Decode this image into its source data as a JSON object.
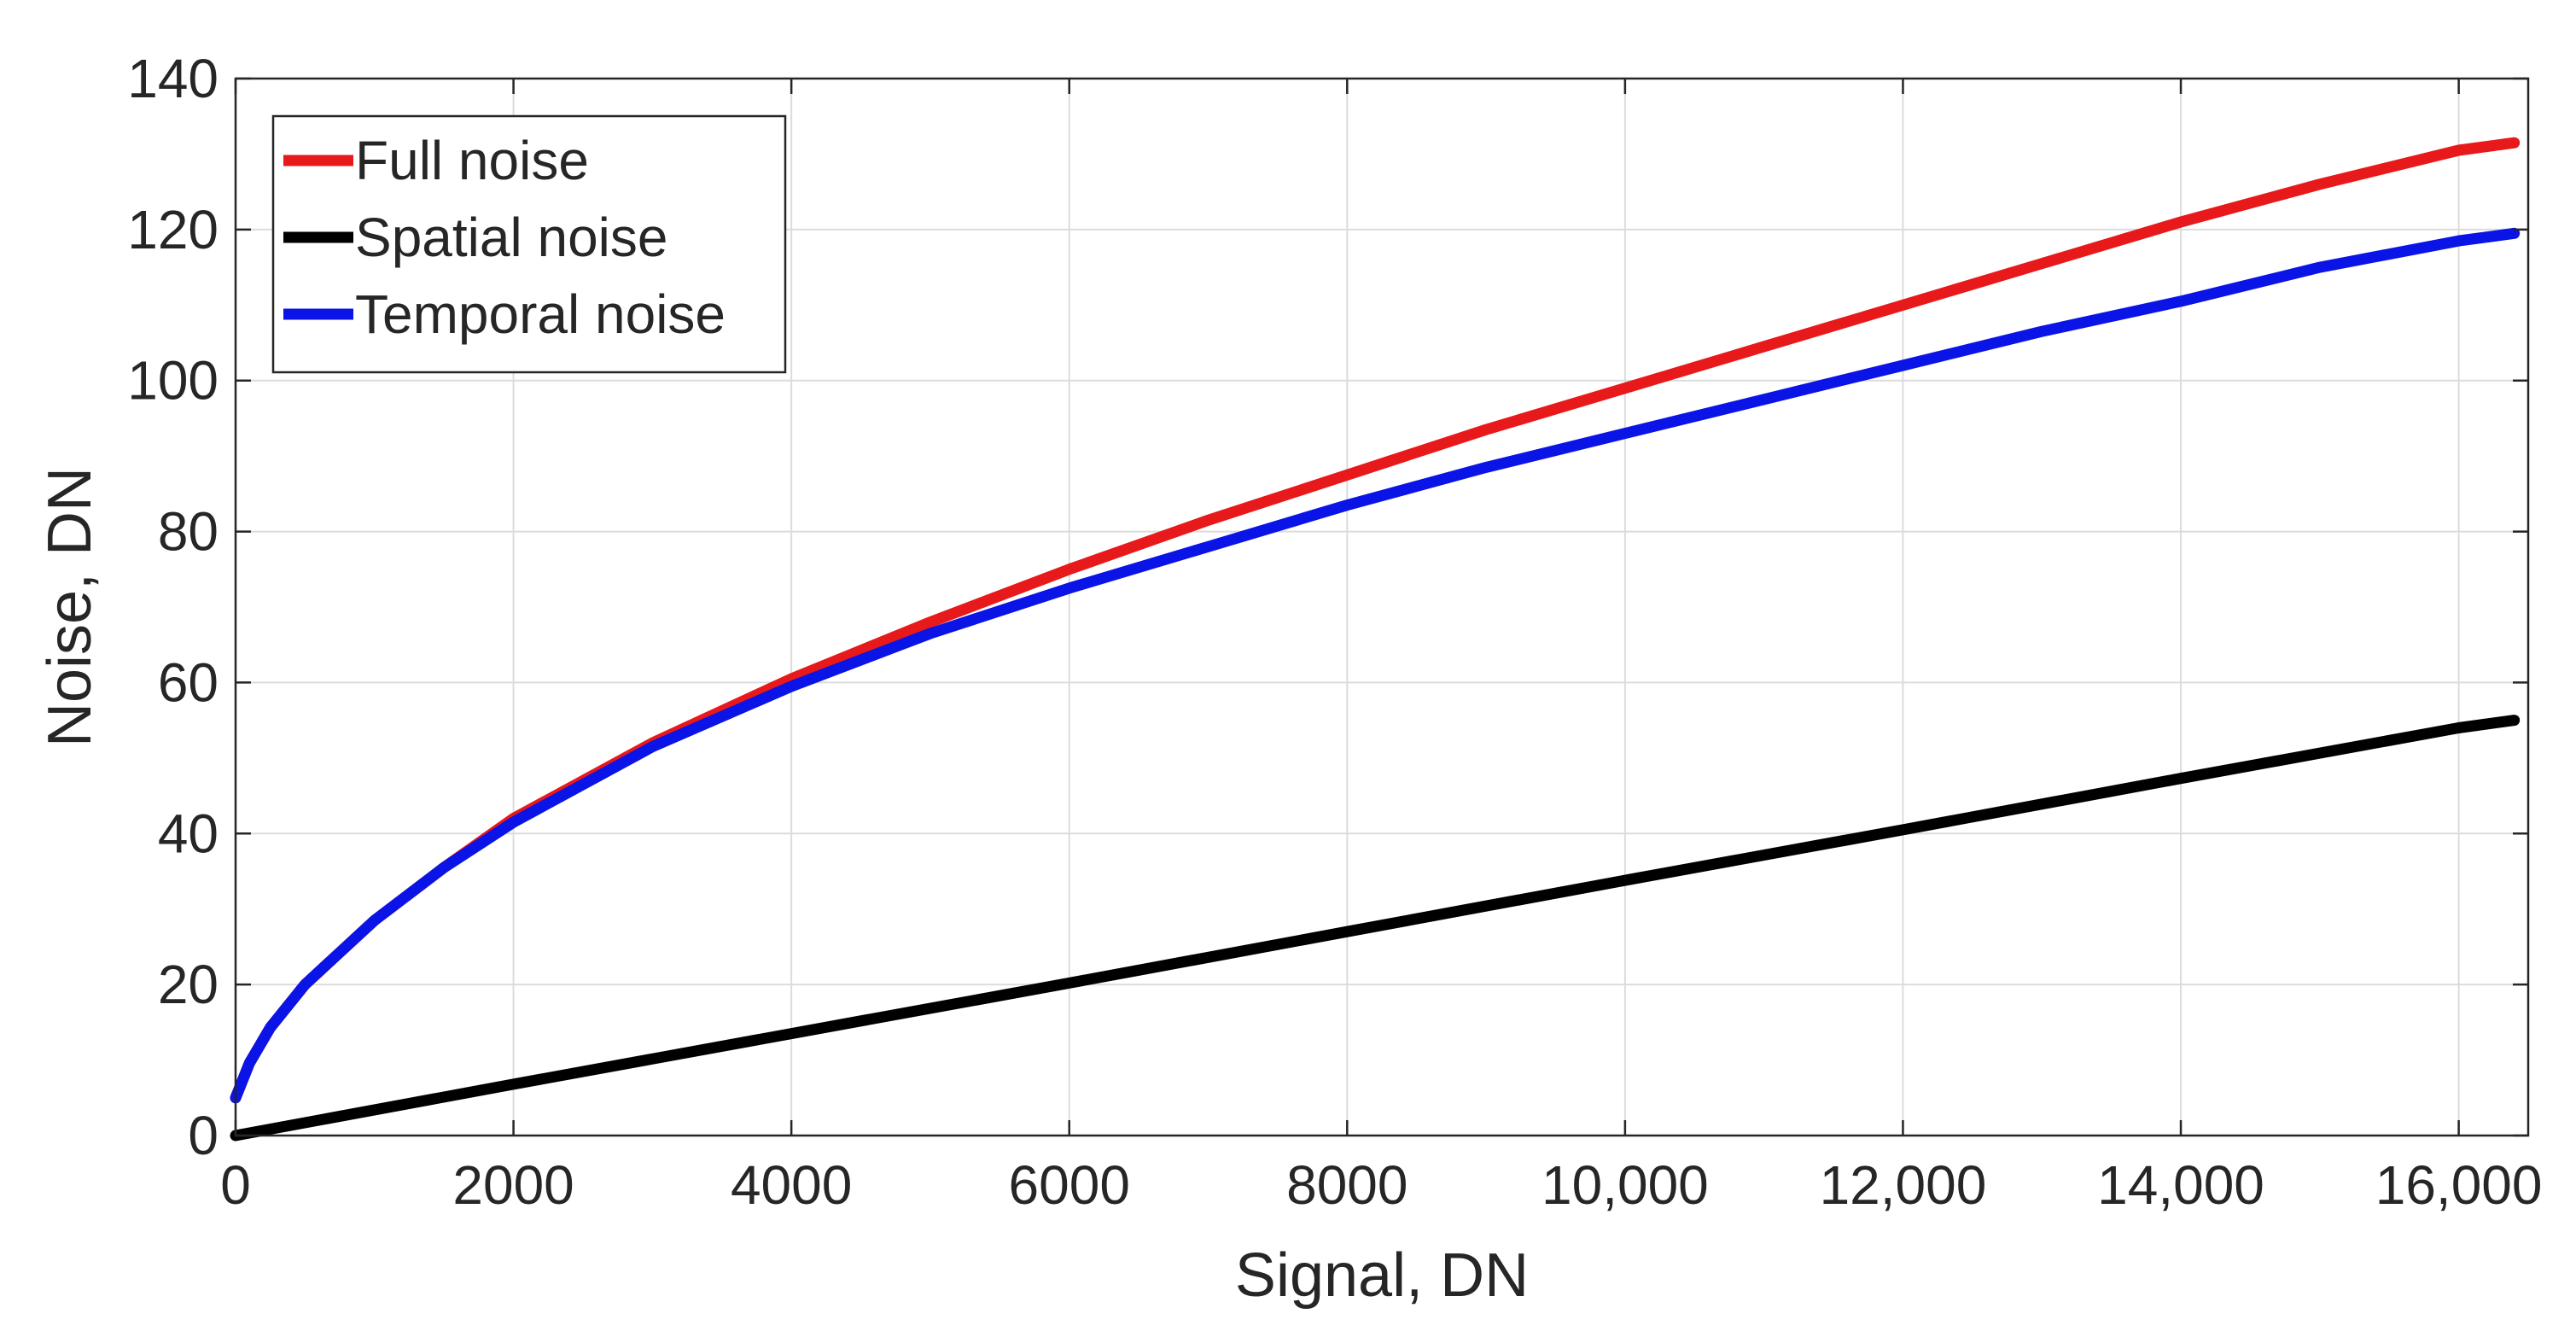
{
  "chart_data": {
    "type": "line",
    "title": "",
    "xlabel": "Signal, DN",
    "ylabel": "Noise, DN",
    "xlim": [
      0,
      16500
    ],
    "ylim": [
      0,
      140
    ],
    "x_ticks": [
      0,
      2000,
      4000,
      6000,
      8000,
      10000,
      12000,
      14000,
      16000
    ],
    "x_tick_labels": [
      "0",
      "2000",
      "4000",
      "6000",
      "8000",
      "10,000",
      "12,000",
      "14,000",
      "16,000"
    ],
    "y_ticks": [
      0,
      20,
      40,
      60,
      80,
      100,
      120,
      140
    ],
    "y_tick_labels": [
      "0",
      "20",
      "40",
      "60",
      "80",
      "100",
      "120",
      "140"
    ],
    "grid": true,
    "legend_position": "top-left",
    "series": [
      {
        "name": "Full noise",
        "color": "#e8191b",
        "x": [
          0,
          100,
          250,
          500,
          1000,
          1500,
          2000,
          3000,
          4000,
          5000,
          6000,
          7000,
          8000,
          9000,
          10000,
          11000,
          12000,
          13000,
          14000,
          15000,
          16000,
          16400
        ],
        "y": [
          5,
          9.6,
          14.3,
          20,
          28.5,
          35.5,
          42,
          52,
          60.5,
          68,
          75,
          81.5,
          87.5,
          93.5,
          99,
          104.5,
          110,
          115.5,
          121,
          126,
          130.5,
          131.5
        ]
      },
      {
        "name": "Spatial noise",
        "color": "#000000",
        "x": [
          0,
          2000,
          4000,
          6000,
          8000,
          10000,
          12000,
          14000,
          16000,
          16400
        ],
        "y": [
          0,
          6.8,
          13.5,
          20.2,
          27,
          33.8,
          40.5,
          47.3,
          54,
          55
        ]
      },
      {
        "name": "Temporal noise",
        "color": "#0a14e6",
        "x": [
          0,
          100,
          250,
          500,
          1000,
          1500,
          2000,
          3000,
          4000,
          5000,
          6000,
          7000,
          8000,
          9000,
          10000,
          11000,
          12000,
          13000,
          14000,
          15000,
          16000,
          16400
        ],
        "y": [
          5,
          9.6,
          14.3,
          20,
          28.5,
          35.5,
          41.5,
          51.5,
          59.5,
          66.5,
          72.5,
          78,
          83.5,
          88.5,
          93,
          97.5,
          102,
          106.5,
          110.5,
          115,
          118.5,
          119.5
        ]
      }
    ]
  }
}
